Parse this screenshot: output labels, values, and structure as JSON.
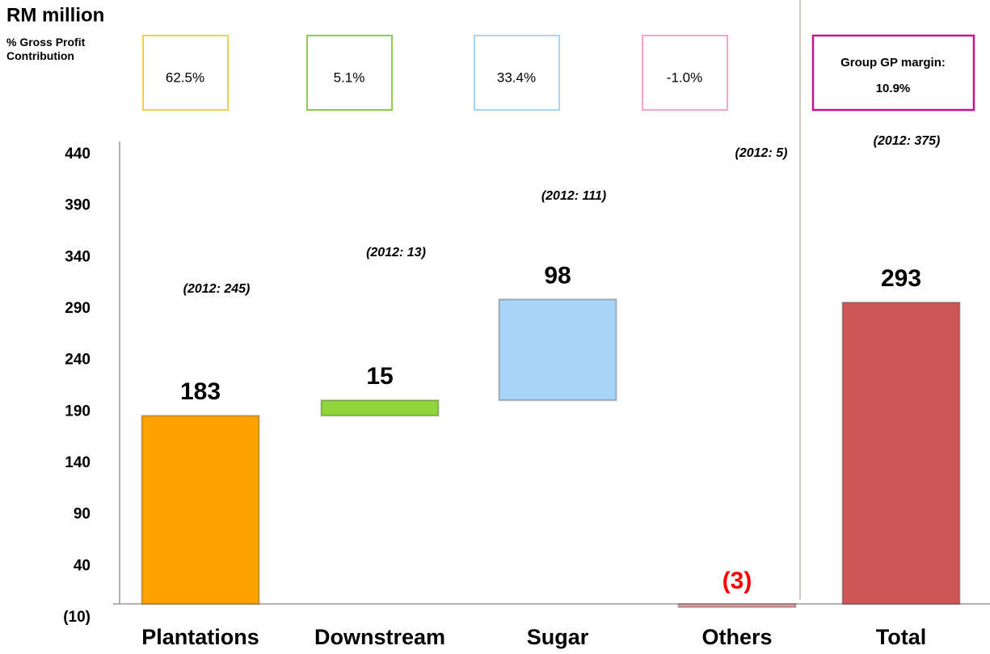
{
  "chart_data": {
    "type": "waterfall",
    "title": "RM million",
    "subtitle": "% Gross Profit Contribution",
    "categories": [
      "Plantations",
      "Downstream",
      "Sugar",
      "Others",
      "Total"
    ],
    "values": [
      183,
      15,
      98,
      -3,
      293
    ],
    "value_labels": [
      "183",
      "15",
      "98",
      "(3)",
      "293"
    ],
    "total_index": 4,
    "colors": [
      "#ffa200",
      "#8fd63a",
      "#a8d4f7",
      "#e8a0a0",
      "#cd5756"
    ],
    "value_label_colors": [
      "#000000",
      "#000000",
      "#000000",
      "#ff0000",
      "#000000"
    ],
    "prior_labels": [
      "(2012: 245)",
      "(2012: 13)",
      "(2012: 111)",
      "(2012: 5)",
      "(2012: 375)"
    ],
    "contributions": [
      "62.5%",
      "5.1%",
      "33.4%",
      "-1.0%"
    ],
    "contribution_colors": [
      "#f0d050",
      "#8ccf4a",
      "#a8d4f7",
      "#f4a6c8"
    ],
    "group_margin": {
      "label": "Group GP margin:",
      "value": "10.9%",
      "color": "#c8148c"
    },
    "ylim": [
      -10,
      440
    ],
    "yticks": [
      {
        "value": -10,
        "label": "(10)"
      },
      40,
      90,
      140,
      190,
      240,
      290,
      340,
      390,
      440
    ]
  }
}
